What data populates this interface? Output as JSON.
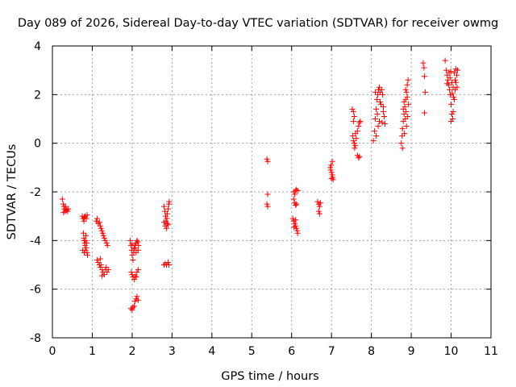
{
  "chart_data": {
    "type": "scatter",
    "title": "Day 089 of 2026, Sidereal Day-to-day VTEC variation (SDTVAR) for receiver owmg",
    "xlabel": "GPS time / hours",
    "ylabel": "SDTVAR / TECUs",
    "xlim": [
      0,
      11
    ],
    "ylim": [
      -8,
      4
    ],
    "xticks": [
      0,
      1,
      2,
      3,
      4,
      5,
      6,
      7,
      8,
      9,
      10,
      11
    ],
    "yticks": [
      -8,
      -6,
      -4,
      -2,
      0,
      2,
      4
    ],
    "xtick_labels": [
      "0",
      "1",
      "2",
      "3",
      "4",
      "5",
      "6",
      "7",
      "8",
      "9",
      "10",
      "11"
    ],
    "ytick_labels": [
      "-8",
      "-6",
      "-4",
      "-2",
      "0",
      "2",
      "4"
    ],
    "grid": true,
    "marker": "+",
    "color": "#ff0000",
    "series": [
      {
        "name": "SDTVAR",
        "points": [
          [
            0.25,
            -2.3
          ],
          [
            0.27,
            -2.5
          ],
          [
            0.29,
            -2.6
          ],
          [
            0.3,
            -2.7
          ],
          [
            0.32,
            -2.8
          ],
          [
            0.34,
            -2.7
          ],
          [
            0.36,
            -2.75
          ],
          [
            0.38,
            -2.8
          ],
          [
            0.4,
            -2.7
          ],
          [
            0.28,
            -2.85
          ],
          [
            0.33,
            -2.6
          ],
          [
            0.75,
            -3.0
          ],
          [
            0.77,
            -3.1
          ],
          [
            0.79,
            -3.2
          ],
          [
            0.8,
            -3.05
          ],
          [
            0.82,
            -3.0
          ],
          [
            0.85,
            -3.1
          ],
          [
            0.87,
            -2.95
          ],
          [
            0.78,
            -3.7
          ],
          [
            0.79,
            -3.9
          ],
          [
            0.8,
            -4.0
          ],
          [
            0.81,
            -4.1
          ],
          [
            0.82,
            -4.2
          ],
          [
            0.83,
            -4.0
          ],
          [
            0.84,
            -3.8
          ],
          [
            0.85,
            -4.3
          ],
          [
            0.86,
            -4.1
          ],
          [
            0.8,
            -4.5
          ],
          [
            0.83,
            -4.4
          ],
          [
            0.87,
            -4.5
          ],
          [
            0.88,
            -4.6
          ],
          [
            0.76,
            -4.4
          ],
          [
            1.1,
            -3.2
          ],
          [
            1.12,
            -3.1
          ],
          [
            1.15,
            -3.3
          ],
          [
            1.18,
            -3.25
          ],
          [
            1.2,
            -3.4
          ],
          [
            1.22,
            -3.5
          ],
          [
            1.24,
            -3.6
          ],
          [
            1.26,
            -3.7
          ],
          [
            1.28,
            -3.8
          ],
          [
            1.3,
            -3.9
          ],
          [
            1.33,
            -4.0
          ],
          [
            1.36,
            -4.1
          ],
          [
            1.38,
            -4.2
          ],
          [
            1.12,
            -4.8
          ],
          [
            1.15,
            -4.9
          ],
          [
            1.18,
            -5.0
          ],
          [
            1.2,
            -5.1
          ],
          [
            1.22,
            -5.0
          ],
          [
            1.25,
            -5.2
          ],
          [
            1.27,
            -5.3
          ],
          [
            1.3,
            -5.4
          ],
          [
            1.32,
            -5.2
          ],
          [
            1.35,
            -5.1
          ],
          [
            1.37,
            -5.3
          ],
          [
            1.4,
            -5.2
          ],
          [
            1.24,
            -5.45
          ],
          [
            1.2,
            -4.75
          ],
          [
            1.95,
            -4.0
          ],
          [
            1.97,
            -4.2
          ],
          [
            1.99,
            -4.4
          ],
          [
            2.0,
            -4.6
          ],
          [
            2.02,
            -4.8
          ],
          [
            2.04,
            -4.5
          ],
          [
            2.06,
            -4.3
          ],
          [
            2.08,
            -4.2
          ],
          [
            2.1,
            -4.1
          ],
          [
            2.12,
            -4.0
          ],
          [
            2.14,
            -4.05
          ],
          [
            2.16,
            -4.2
          ],
          [
            2.0,
            -4.15
          ],
          [
            2.05,
            -4.35
          ],
          [
            2.1,
            -4.5
          ],
          [
            2.15,
            -4.4
          ],
          [
            1.98,
            -5.3
          ],
          [
            2.0,
            -5.4
          ],
          [
            2.02,
            -5.5
          ],
          [
            2.05,
            -5.6
          ],
          [
            2.08,
            -5.45
          ],
          [
            2.1,
            -5.5
          ],
          [
            2.12,
            -5.3
          ],
          [
            2.15,
            -5.2
          ],
          [
            1.97,
            -6.8
          ],
          [
            2.0,
            -6.85
          ],
          [
            2.02,
            -6.75
          ],
          [
            2.05,
            -6.7
          ],
          [
            2.07,
            -6.5
          ],
          [
            2.1,
            -6.4
          ],
          [
            2.12,
            -6.3
          ],
          [
            2.15,
            -6.45
          ],
          [
            2.8,
            -2.6
          ],
          [
            2.82,
            -2.8
          ],
          [
            2.84,
            -3.0
          ],
          [
            2.85,
            -3.2
          ],
          [
            2.87,
            -3.1
          ],
          [
            2.88,
            -3.3
          ],
          [
            2.9,
            -2.7
          ],
          [
            2.92,
            -2.5
          ],
          [
            2.93,
            -2.4
          ],
          [
            2.83,
            -3.4
          ],
          [
            2.86,
            -3.5
          ],
          [
            2.9,
            -3.35
          ],
          [
            2.8,
            -3.25
          ],
          [
            2.88,
            -2.9
          ],
          [
            2.8,
            -5.0
          ],
          [
            2.83,
            -4.95
          ],
          [
            2.86,
            -5.0
          ],
          [
            2.9,
            -4.9
          ],
          [
            2.92,
            -5.0
          ],
          [
            5.38,
            -0.65
          ],
          [
            5.4,
            -0.75
          ],
          [
            5.4,
            -2.1
          ],
          [
            5.38,
            -2.5
          ],
          [
            5.4,
            -2.6
          ],
          [
            6.05,
            -2.0
          ],
          [
            6.08,
            -2.1
          ],
          [
            6.1,
            -1.95
          ],
          [
            6.12,
            -1.9
          ],
          [
            6.15,
            -1.95
          ],
          [
            6.05,
            -2.3
          ],
          [
            6.08,
            -2.45
          ],
          [
            6.1,
            -2.55
          ],
          [
            6.12,
            -2.5
          ],
          [
            6.03,
            -3.1
          ],
          [
            6.05,
            -3.2
          ],
          [
            6.08,
            -3.3
          ],
          [
            6.1,
            -3.4
          ],
          [
            6.12,
            -3.5
          ],
          [
            6.14,
            -3.6
          ],
          [
            6.15,
            -3.7
          ],
          [
            6.06,
            -3.45
          ],
          [
            6.1,
            -3.15
          ],
          [
            6.65,
            -2.4
          ],
          [
            6.68,
            -2.5
          ],
          [
            6.7,
            -2.6
          ],
          [
            6.68,
            -2.8
          ],
          [
            6.7,
            -2.9
          ],
          [
            6.72,
            -2.45
          ],
          [
            6.97,
            -1.0
          ],
          [
            6.99,
            -0.9
          ],
          [
            7.0,
            -1.2
          ],
          [
            7.02,
            -1.3
          ],
          [
            7.03,
            -1.4
          ],
          [
            7.04,
            -1.5
          ],
          [
            7.0,
            -1.45
          ],
          [
            7.02,
            -0.75
          ],
          [
            6.98,
            -1.1
          ],
          [
            7.52,
            1.4
          ],
          [
            7.55,
            1.3
          ],
          [
            7.57,
            1.1
          ],
          [
            7.55,
            0.9
          ],
          [
            7.53,
            0.3
          ],
          [
            7.55,
            0.1
          ],
          [
            7.57,
            0.0
          ],
          [
            7.6,
            -0.1
          ],
          [
            7.58,
            -0.2
          ],
          [
            7.62,
            0.2
          ],
          [
            7.65,
            0.5
          ],
          [
            7.68,
            0.7
          ],
          [
            7.7,
            0.85
          ],
          [
            7.72,
            0.9
          ],
          [
            7.65,
            -0.5
          ],
          [
            7.68,
            -0.6
          ],
          [
            7.7,
            -0.55
          ],
          [
            7.6,
            0.4
          ],
          [
            8.05,
            0.1
          ],
          [
            8.08,
            0.5
          ],
          [
            8.1,
            1.0
          ],
          [
            8.12,
            1.4
          ],
          [
            8.14,
            1.8
          ],
          [
            8.16,
            2.0
          ],
          [
            8.18,
            2.2
          ],
          [
            8.2,
            2.3
          ],
          [
            8.22,
            2.1
          ],
          [
            8.15,
            1.2
          ],
          [
            8.17,
            0.7
          ],
          [
            8.2,
            0.9
          ],
          [
            8.24,
            1.6
          ],
          [
            8.26,
            2.2
          ],
          [
            8.28,
            2.0
          ],
          [
            8.3,
            1.5
          ],
          [
            8.32,
            1.1
          ],
          [
            8.34,
            0.8
          ],
          [
            8.3,
            1.3
          ],
          [
            8.1,
            2.1
          ],
          [
            8.12,
            0.3
          ],
          [
            8.22,
            1.7
          ],
          [
            8.27,
            0.85
          ],
          [
            8.75,
            0.0
          ],
          [
            8.77,
            0.3
          ],
          [
            8.78,
            0.6
          ],
          [
            8.8,
            0.9
          ],
          [
            8.82,
            1.2
          ],
          [
            8.84,
            1.5
          ],
          [
            8.86,
            1.8
          ],
          [
            8.88,
            2.1
          ],
          [
            8.9,
            2.4
          ],
          [
            8.92,
            2.6
          ],
          [
            8.8,
            1.4
          ],
          [
            8.82,
            1.7
          ],
          [
            8.85,
            1.0
          ],
          [
            8.87,
            1.3
          ],
          [
            8.9,
            1.9
          ],
          [
            8.93,
            1.6
          ],
          [
            8.78,
            -0.2
          ],
          [
            8.83,
            0.4
          ],
          [
            8.86,
            2.2
          ],
          [
            8.88,
            0.7
          ],
          [
            8.91,
            1.1
          ],
          [
            9.3,
            3.3
          ],
          [
            9.32,
            3.1
          ],
          [
            9.33,
            2.75
          ],
          [
            9.35,
            2.1
          ],
          [
            9.33,
            1.25
          ],
          [
            9.85,
            3.4
          ],
          [
            9.88,
            3.0
          ],
          [
            9.9,
            2.8
          ],
          [
            9.92,
            2.6
          ],
          [
            9.94,
            2.4
          ],
          [
            9.96,
            2.2
          ],
          [
            9.98,
            2.0
          ],
          [
            10.0,
            1.6
          ],
          [
            10.02,
            1.2
          ],
          [
            10.04,
            1.0
          ],
          [
            10.0,
            0.9
          ],
          [
            10.05,
            1.3
          ],
          [
            10.08,
            1.8
          ],
          [
            10.1,
            2.2
          ],
          [
            10.12,
            2.5
          ],
          [
            10.14,
            2.8
          ],
          [
            10.16,
            3.0
          ],
          [
            9.95,
            2.9
          ],
          [
            9.97,
            2.7
          ],
          [
            10.05,
            2.3
          ],
          [
            10.08,
            2.9
          ],
          [
            10.1,
            2.6
          ],
          [
            10.02,
            2.5
          ],
          [
            9.9,
            2.45
          ],
          [
            10.06,
            1.9
          ],
          [
            10.12,
            3.05
          ],
          [
            10.15,
            2.3
          ],
          [
            9.99,
            2.95
          ],
          [
            10.03,
            2.05
          ]
        ]
      }
    ]
  }
}
